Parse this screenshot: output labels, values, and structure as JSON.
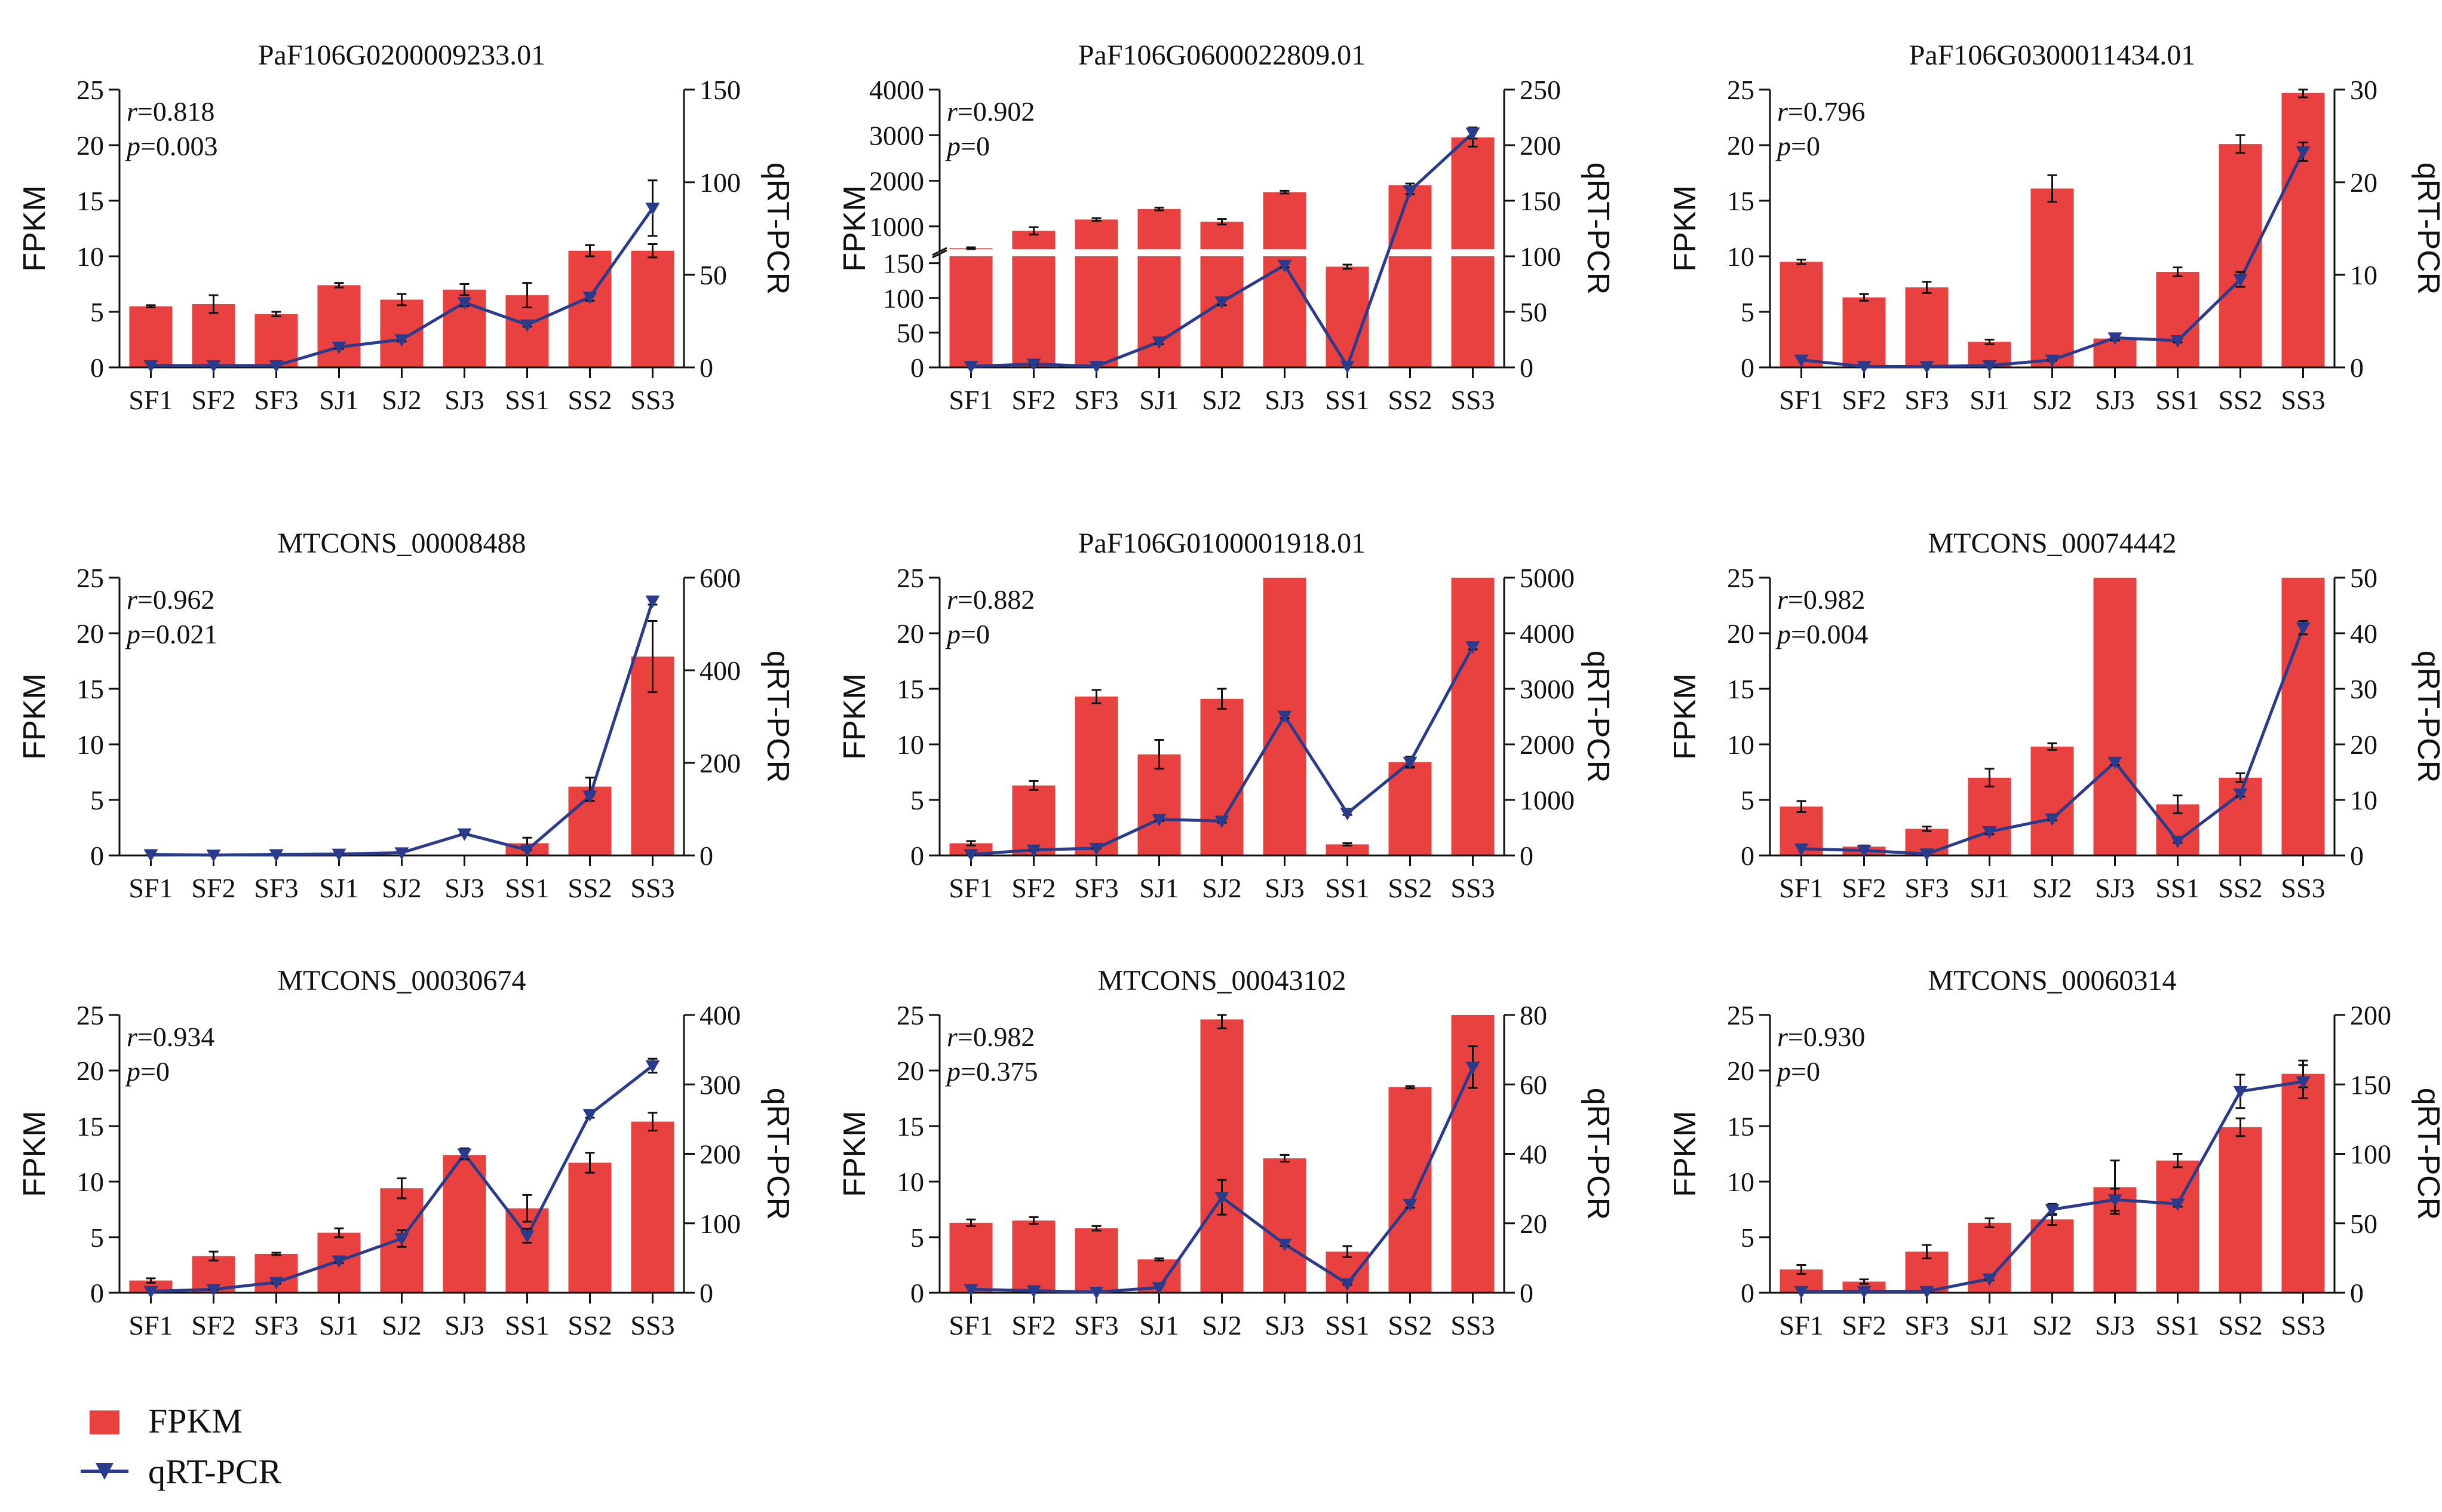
{
  "colors": {
    "fpkm": "#e8413f",
    "qrt": "#2b3b8c",
    "axis": "#111111"
  },
  "legend": {
    "fpkm_label": "FPKM",
    "qrt_label": "qRT-PCR"
  },
  "chart_data": [
    {
      "type": "bar+line",
      "title": "PaF106G0200009233.01",
      "categories": [
        "SF1",
        "SF2",
        "SF3",
        "SJ1",
        "SJ2",
        "SJ3",
        "SS1",
        "SS2",
        "SS3"
      ],
      "ylabel": "FPKM",
      "y2label": "qRT-PCR",
      "ylim": [
        0,
        25
      ],
      "yticks": [
        0,
        5,
        10,
        15,
        20,
        25
      ],
      "y2lim": [
        0,
        150
      ],
      "y2ticks": [
        0,
        50,
        100,
        150
      ],
      "fpkm": [
        5.5,
        5.7,
        4.8,
        7.4,
        6.1,
        7.0,
        6.5,
        10.5,
        10.5
      ],
      "fpkm_err": [
        0.1,
        0.8,
        0.2,
        0.2,
        0.5,
        0.5,
        1.1,
        0.5,
        0.6
      ],
      "qrt": [
        1,
        1,
        1,
        11,
        15,
        35,
        23,
        38,
        86
      ],
      "qrt_err": [
        0,
        0,
        0,
        1,
        1,
        2,
        1,
        2,
        15
      ],
      "r_label": "r",
      "r_value": "=0.818",
      "p_label": "p",
      "p_value": "=0.003"
    },
    {
      "type": "bar+line",
      "title": "PaF106G0600022809.01",
      "categories": [
        "SF1",
        "SF2",
        "SF3",
        "SJ1",
        "SJ2",
        "SJ3",
        "SS1",
        "SS2",
        "SS3"
      ],
      "ylabel": "FPKM",
      "y2label": "qRT-PCR",
      "broken_axis": true,
      "ylim_lower": [
        0,
        160
      ],
      "yticks_lower": [
        0,
        50,
        100,
        150
      ],
      "ylim_upper": [
        500,
        4000
      ],
      "yticks_upper": [
        1000,
        2000,
        3000,
        4000
      ],
      "y2lim": [
        0,
        250
      ],
      "y2ticks": [
        0,
        50,
        100,
        150,
        200,
        250
      ],
      "fpkm": [
        520,
        900,
        1150,
        1380,
        1100,
        1750,
        145,
        1900,
        2950
      ],
      "fpkm_err": [
        20,
        80,
        30,
        30,
        60,
        30,
        3,
        40,
        200
      ],
      "qrt": [
        1,
        3,
        1,
        23,
        59,
        92,
        1,
        159,
        211
      ],
      "qrt_err": [
        0,
        1,
        0,
        2,
        3,
        2,
        0,
        3,
        5
      ],
      "r_label": "r",
      "r_value": "=0.902",
      "p_label": "p",
      "p_value": "=0"
    },
    {
      "type": "bar+line",
      "title": "PaF106G0300011434.01",
      "categories": [
        "SF1",
        "SF2",
        "SF3",
        "SJ1",
        "SJ2",
        "SJ3",
        "SS1",
        "SS2",
        "SS3"
      ],
      "ylabel": "FPKM",
      "y2label": "qRT-PCR",
      "ylim": [
        0,
        25
      ],
      "yticks": [
        0,
        5,
        10,
        15,
        20,
        25
      ],
      "y2lim": [
        0,
        30
      ],
      "y2ticks": [
        0,
        10,
        20,
        30
      ],
      "fpkm": [
        9.5,
        6.3,
        7.2,
        2.3,
        16.1,
        2.6,
        8.6,
        20.1,
        24.7
      ],
      "fpkm_err": [
        0.2,
        0.3,
        0.5,
        0.2,
        1.2,
        0.1,
        0.4,
        0.8,
        0.4
      ],
      "qrt": [
        0.8,
        0.1,
        0.1,
        0.2,
        0.8,
        3.2,
        2.9,
        9.5,
        23.3
      ],
      "qrt_err": [
        0,
        0,
        0,
        0,
        0.1,
        0.3,
        0.2,
        0.8,
        1.0
      ],
      "r_label": "r",
      "r_value": "=0.796",
      "p_label": "p",
      "p_value": "=0"
    },
    {
      "type": "bar+line",
      "title": "MTCONS_00008488",
      "categories": [
        "SF1",
        "SF2",
        "SF3",
        "SJ1",
        "SJ2",
        "SJ3",
        "SS1",
        "SS2",
        "SS3"
      ],
      "ylabel": "FPKM",
      "y2label": "qRT-PCR",
      "ylim": [
        0,
        25
      ],
      "yticks": [
        0,
        5,
        10,
        15,
        20,
        25
      ],
      "y2lim": [
        0,
        600
      ],
      "y2ticks": [
        0,
        200,
        400,
        600
      ],
      "fpkm": [
        0,
        0,
        0,
        0,
        0,
        0,
        1.1,
        6.2,
        17.9
      ],
      "fpkm_err": [
        0,
        0,
        0,
        0,
        0,
        0,
        0.5,
        0.8,
        3.2
      ],
      "qrt": [
        2,
        1,
        2,
        3,
        6,
        47,
        12,
        128,
        550
      ],
      "qrt_err": [
        0,
        0,
        0,
        0,
        0,
        2,
        1,
        10,
        8
      ],
      "r_label": "r",
      "r_value": "=0.962",
      "p_label": "p",
      "p_value": "=0.021"
    },
    {
      "type": "bar+line",
      "title": "PaF106G0100001918.01",
      "categories": [
        "SF1",
        "SF2",
        "SF3",
        "SJ1",
        "SJ2",
        "SJ3",
        "SS1",
        "SS2",
        "SS3"
      ],
      "ylabel": "FPKM",
      "y2label": "qRT-PCR",
      "ylim": [
        0,
        25
      ],
      "yticks": [
        0,
        5,
        10,
        15,
        20,
        25
      ],
      "y2lim": [
        0,
        5000
      ],
      "y2ticks": [
        0,
        1000,
        2000,
        3000,
        4000,
        5000
      ],
      "fpkm": [
        1.1,
        6.3,
        14.3,
        9.1,
        14.1,
        25,
        1.0,
        8.4,
        25
      ],
      "fpkm_err": [
        0.2,
        0.4,
        0.6,
        1.3,
        0.9,
        0,
        0.1,
        0.5,
        0
      ],
      "qrt": [
        20,
        100,
        130,
        650,
        620,
        2510,
        760,
        1680,
        3760
      ],
      "qrt_err": [
        5,
        10,
        10,
        30,
        30,
        40,
        30,
        80,
        50
      ],
      "r_label": "r",
      "r_value": "=0.882",
      "p_label": "p",
      "p_value": "=0"
    },
    {
      "type": "bar+line",
      "title": "MTCONS_00074442",
      "categories": [
        "SF1",
        "SF2",
        "SF3",
        "SJ1",
        "SJ2",
        "SJ3",
        "SS1",
        "SS2",
        "SS3"
      ],
      "ylabel": "FPKM",
      "y2label": "qRT-PCR",
      "ylim": [
        0,
        25
      ],
      "yticks": [
        0,
        5,
        10,
        15,
        20,
        25
      ],
      "y2lim": [
        0,
        50
      ],
      "y2ticks": [
        0,
        10,
        20,
        30,
        40,
        50
      ],
      "fpkm": [
        4.4,
        0.8,
        2.4,
        7.0,
        9.8,
        25,
        4.6,
        7.0,
        25
      ],
      "fpkm_err": [
        0.5,
        0.1,
        0.2,
        0.8,
        0.3,
        0,
        0.8,
        0.4,
        0
      ],
      "qrt": [
        1.2,
        0.9,
        0.3,
        4.3,
        6.6,
        16.8,
        2.6,
        11.1,
        41.0
      ],
      "qrt_err": [
        0,
        0,
        0,
        0.5,
        0.3,
        0.5,
        0.3,
        0.5,
        1.2
      ],
      "r_label": "r",
      "r_value": "=0.982",
      "p_label": "p",
      "p_value": "=0.004"
    },
    {
      "type": "bar+line",
      "title": "MTCONS_00030674",
      "categories": [
        "SF1",
        "SF2",
        "SF3",
        "SJ1",
        "SJ2",
        "SJ3",
        "SS1",
        "SS2",
        "SS3"
      ],
      "ylabel": "FPKM",
      "y2label": "qRT-PCR",
      "ylim": [
        0,
        25
      ],
      "yticks": [
        0,
        5,
        10,
        15,
        20,
        25
      ],
      "y2lim": [
        0,
        400
      ],
      "y2ticks": [
        0,
        100,
        200,
        300,
        400
      ],
      "fpkm": [
        1.1,
        3.3,
        3.5,
        5.4,
        9.4,
        12.4,
        7.6,
        11.7,
        15.4
      ],
      "fpkm_err": [
        0.2,
        0.4,
        0.1,
        0.4,
        0.9,
        0.3,
        1.2,
        0.9,
        0.8
      ],
      "qrt": [
        2,
        5,
        15,
        46,
        78,
        200,
        82,
        257,
        327
      ],
      "qrt_err": [
        0,
        1,
        2,
        3,
        12,
        8,
        10,
        5,
        10
      ],
      "r_label": "r",
      "r_value": "=0.934",
      "p_label": "p",
      "p_value": "=0"
    },
    {
      "type": "bar+line",
      "title": "MTCONS_00043102",
      "categories": [
        "SF1",
        "SF2",
        "SF3",
        "SJ1",
        "SJ2",
        "SJ3",
        "SS1",
        "SS2",
        "SS3"
      ],
      "ylabel": "FPKM",
      "y2label": "qRT-PCR",
      "ylim": [
        0,
        25
      ],
      "yticks": [
        0,
        5,
        10,
        15,
        20,
        25
      ],
      "y2lim": [
        0,
        80
      ],
      "y2ticks": [
        0,
        20,
        40,
        60,
        80
      ],
      "fpkm": [
        6.3,
        6.5,
        5.8,
        3.0,
        24.6,
        12.1,
        3.7,
        18.5,
        25
      ],
      "fpkm_err": [
        0.3,
        0.3,
        0.2,
        0.1,
        0.8,
        0.3,
        0.5,
        0.1,
        0
      ],
      "qrt": [
        1,
        0.6,
        0.2,
        1.5,
        27.5,
        14,
        2.6,
        25.5,
        65
      ],
      "qrt_err": [
        0,
        0,
        0,
        0,
        5,
        0.5,
        0.3,
        1,
        6
      ],
      "r_label": "r",
      "r_value": "=0.982",
      "p_label": "p",
      "p_value": "=0.375"
    },
    {
      "type": "bar+line",
      "title": "MTCONS_00060314",
      "categories": [
        "SF1",
        "SF2",
        "SF3",
        "SJ1",
        "SJ2",
        "SJ3",
        "SS1",
        "SS2",
        "SS3"
      ],
      "ylabel": "FPKM",
      "y2label": "qRT-PCR",
      "ylim": [
        0,
        25
      ],
      "yticks": [
        0,
        5,
        10,
        15,
        20,
        25
      ],
      "y2lim": [
        0,
        200
      ],
      "y2ticks": [
        0,
        50,
        100,
        150,
        200
      ],
      "fpkm": [
        2.1,
        1.0,
        3.7,
        6.3,
        6.6,
        9.5,
        11.9,
        14.9,
        19.7
      ],
      "fpkm_err": [
        0.4,
        0.2,
        0.6,
        0.4,
        0.5,
        2.4,
        0.6,
        0.8,
        1.2
      ],
      "qrt": [
        1,
        1,
        1,
        10,
        60,
        67,
        64,
        145,
        152
      ],
      "qrt_err": [
        0,
        0,
        0,
        1,
        4,
        8,
        2,
        12,
        12
      ],
      "r_label": "r",
      "r_value": "=0.930",
      "p_label": "p",
      "p_value": "=0"
    }
  ]
}
